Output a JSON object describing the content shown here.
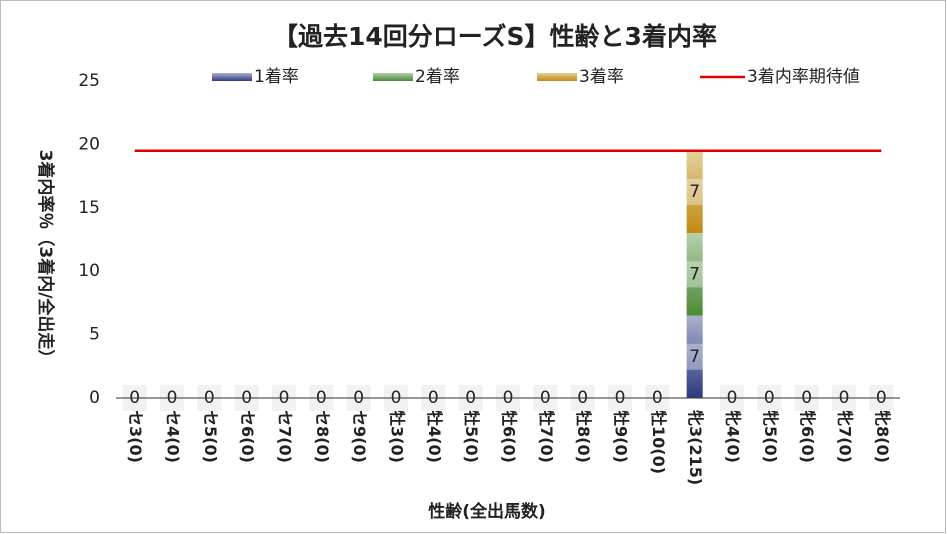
{
  "chart_data": {
    "type": "bar",
    "stacked": true,
    "title": "【過去14回分ローズS】性齢と3着内率",
    "x_label": "性齢(全出馬数)",
    "y_label": "3着内率％（3着内/全出走）",
    "categories": [
      "セ3(0)",
      "セ4(0)",
      "セ5(0)",
      "セ6(0)",
      "セ7(0)",
      "セ8(0)",
      "セ9(0)",
      "牡3(0)",
      "牡4(0)",
      "牡5(0)",
      "牡6(0)",
      "牡7(0)",
      "牡8(0)",
      "牡9(0)",
      "牡10(0)",
      "牝3(215)",
      "牝4(0)",
      "牝5(0)",
      "牝6(0)",
      "牝7(0)",
      "牝8(0)"
    ],
    "series": [
      {
        "name": "1着率",
        "color": "#2e3a80",
        "values": [
          0,
          0,
          0,
          0,
          0,
          0,
          0,
          0,
          0,
          0,
          0,
          0,
          0,
          0,
          0,
          6.5,
          0,
          0,
          0,
          0,
          0
        ],
        "value_labels": [
          "0",
          "0",
          "0",
          "0",
          "0",
          "0",
          "0",
          "0",
          "0",
          "0",
          "0",
          "0",
          "0",
          "0",
          "0",
          "7",
          "0",
          "0",
          "0",
          "0",
          "0"
        ]
      },
      {
        "name": "2着率",
        "color": "#4a8a34",
        "values": [
          0,
          0,
          0,
          0,
          0,
          0,
          0,
          0,
          0,
          0,
          0,
          0,
          0,
          0,
          0,
          6.5,
          0,
          0,
          0,
          0,
          0
        ],
        "value_labels": [
          "0",
          "0",
          "0",
          "0",
          "0",
          "0",
          "0",
          "0",
          "0",
          "0",
          "0",
          "0",
          "0",
          "0",
          "0",
          "7",
          "0",
          "0",
          "0",
          "0",
          "0"
        ]
      },
      {
        "name": "3着率",
        "color": "#bf8a10",
        "values": [
          0,
          0,
          0,
          0,
          0,
          0,
          0,
          0,
          0,
          0,
          0,
          0,
          0,
          0,
          0,
          6.5,
          0,
          0,
          0,
          0,
          0
        ],
        "value_labels": [
          "0",
          "0",
          "0",
          "0",
          "0",
          "0",
          "0",
          "0",
          "0",
          "0",
          "0",
          "0",
          "0",
          "0",
          "0",
          "7",
          "0",
          "0",
          "0",
          "0",
          "0"
        ]
      },
      {
        "name": "3着内率期待値",
        "type": "line",
        "color": "#e00000",
        "values": [
          19.5,
          19.5,
          19.5,
          19.5,
          19.5,
          19.5,
          19.5,
          19.5,
          19.5,
          19.5,
          19.5,
          19.5,
          19.5,
          19.5,
          19.5,
          19.5,
          19.5,
          19.5,
          19.5,
          19.5,
          19.5
        ]
      }
    ],
    "ylim": [
      0,
      25
    ],
    "yticks": [
      0,
      5,
      10,
      15,
      20,
      25
    ],
    "grid": false,
    "legend": "top"
  }
}
